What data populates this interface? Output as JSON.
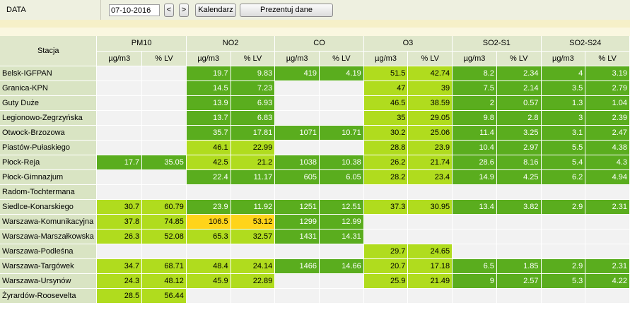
{
  "toolbar": {
    "label": "DATA",
    "date": "07-10-2016",
    "prev": "<",
    "next": ">",
    "calendar": "Kalendarz",
    "present": "Prezentuj dane"
  },
  "header": {
    "station": "Stacja",
    "pollutants": [
      "PM10",
      "NO2",
      "CO",
      "O3",
      "SO2-S1",
      "SO2-S24"
    ],
    "units": [
      "µg/m3",
      "% LV"
    ]
  },
  "colors": {
    "dark_green": "#5aad1e",
    "light_green": "#b0dc1e",
    "yellow": "#ffd41a",
    "empty": "#f2f2f2"
  },
  "rows": [
    {
      "station": "Belsk-IGFPAN",
      "cells": [
        {
          "v": "",
          "c": "e"
        },
        {
          "v": "",
          "c": "e"
        },
        {
          "v": "19.7",
          "c": "dg"
        },
        {
          "v": "9.83",
          "c": "dg"
        },
        {
          "v": "419",
          "c": "dg"
        },
        {
          "v": "4.19",
          "c": "dg"
        },
        {
          "v": "51.5",
          "c": "lg"
        },
        {
          "v": "42.74",
          "c": "lg"
        },
        {
          "v": "8.2",
          "c": "dg"
        },
        {
          "v": "2.34",
          "c": "dg"
        },
        {
          "v": "4",
          "c": "dg"
        },
        {
          "v": "3.19",
          "c": "dg"
        }
      ]
    },
    {
      "station": "Granica-KPN",
      "cells": [
        {
          "v": "",
          "c": "e"
        },
        {
          "v": "",
          "c": "e"
        },
        {
          "v": "14.5",
          "c": "dg"
        },
        {
          "v": "7.23",
          "c": "dg"
        },
        {
          "v": "",
          "c": "e"
        },
        {
          "v": "",
          "c": "e"
        },
        {
          "v": "47",
          "c": "lg"
        },
        {
          "v": "39",
          "c": "lg"
        },
        {
          "v": "7.5",
          "c": "dg"
        },
        {
          "v": "2.14",
          "c": "dg"
        },
        {
          "v": "3.5",
          "c": "dg"
        },
        {
          "v": "2.79",
          "c": "dg"
        }
      ]
    },
    {
      "station": "Guty Duże",
      "cells": [
        {
          "v": "",
          "c": "e"
        },
        {
          "v": "",
          "c": "e"
        },
        {
          "v": "13.9",
          "c": "dg"
        },
        {
          "v": "6.93",
          "c": "dg"
        },
        {
          "v": "",
          "c": "e"
        },
        {
          "v": "",
          "c": "e"
        },
        {
          "v": "46.5",
          "c": "lg"
        },
        {
          "v": "38.59",
          "c": "lg"
        },
        {
          "v": "2",
          "c": "dg"
        },
        {
          "v": "0.57",
          "c": "dg"
        },
        {
          "v": "1.3",
          "c": "dg"
        },
        {
          "v": "1.04",
          "c": "dg"
        }
      ]
    },
    {
      "station": "Legionowo-Zegrzyńska",
      "cells": [
        {
          "v": "",
          "c": "e"
        },
        {
          "v": "",
          "c": "e"
        },
        {
          "v": "13.7",
          "c": "dg"
        },
        {
          "v": "6.83",
          "c": "dg"
        },
        {
          "v": "",
          "c": "e"
        },
        {
          "v": "",
          "c": "e"
        },
        {
          "v": "35",
          "c": "lg"
        },
        {
          "v": "29.05",
          "c": "lg"
        },
        {
          "v": "9.8",
          "c": "dg"
        },
        {
          "v": "2.8",
          "c": "dg"
        },
        {
          "v": "3",
          "c": "dg"
        },
        {
          "v": "2.39",
          "c": "dg"
        }
      ]
    },
    {
      "station": "Otwock-Brzozowa",
      "cells": [
        {
          "v": "",
          "c": "e"
        },
        {
          "v": "",
          "c": "e"
        },
        {
          "v": "35.7",
          "c": "dg"
        },
        {
          "v": "17.81",
          "c": "dg"
        },
        {
          "v": "1071",
          "c": "dg"
        },
        {
          "v": "10.71",
          "c": "dg"
        },
        {
          "v": "30.2",
          "c": "lg"
        },
        {
          "v": "25.06",
          "c": "lg"
        },
        {
          "v": "11.4",
          "c": "dg"
        },
        {
          "v": "3.25",
          "c": "dg"
        },
        {
          "v": "3.1",
          "c": "dg"
        },
        {
          "v": "2.47",
          "c": "dg"
        }
      ]
    },
    {
      "station": "Piastów-Pułaskiego",
      "cells": [
        {
          "v": "",
          "c": "e"
        },
        {
          "v": "",
          "c": "e"
        },
        {
          "v": "46.1",
          "c": "lg"
        },
        {
          "v": "22.99",
          "c": "lg"
        },
        {
          "v": "",
          "c": "e"
        },
        {
          "v": "",
          "c": "e"
        },
        {
          "v": "28.8",
          "c": "lg"
        },
        {
          "v": "23.9",
          "c": "lg"
        },
        {
          "v": "10.4",
          "c": "dg"
        },
        {
          "v": "2.97",
          "c": "dg"
        },
        {
          "v": "5.5",
          "c": "dg"
        },
        {
          "v": "4.38",
          "c": "dg"
        }
      ]
    },
    {
      "station": "Płock-Reja",
      "cells": [
        {
          "v": "17.7",
          "c": "dg"
        },
        {
          "v": "35.05",
          "c": "dg"
        },
        {
          "v": "42.5",
          "c": "lg"
        },
        {
          "v": "21.2",
          "c": "lg"
        },
        {
          "v": "1038",
          "c": "dg"
        },
        {
          "v": "10.38",
          "c": "dg"
        },
        {
          "v": "26.2",
          "c": "lg"
        },
        {
          "v": "21.74",
          "c": "lg"
        },
        {
          "v": "28.6",
          "c": "dg"
        },
        {
          "v": "8.16",
          "c": "dg"
        },
        {
          "v": "5.4",
          "c": "dg"
        },
        {
          "v": "4.3",
          "c": "dg"
        }
      ]
    },
    {
      "station": "Płock-Gimnazjum",
      "cells": [
        {
          "v": "",
          "c": "e"
        },
        {
          "v": "",
          "c": "e"
        },
        {
          "v": "22.4",
          "c": "dg"
        },
        {
          "v": "11.17",
          "c": "dg"
        },
        {
          "v": "605",
          "c": "dg"
        },
        {
          "v": "6.05",
          "c": "dg"
        },
        {
          "v": "28.2",
          "c": "lg"
        },
        {
          "v": "23.4",
          "c": "lg"
        },
        {
          "v": "14.9",
          "c": "dg"
        },
        {
          "v": "4.25",
          "c": "dg"
        },
        {
          "v": "6.2",
          "c": "dg"
        },
        {
          "v": "4.94",
          "c": "dg"
        }
      ]
    },
    {
      "station": "Radom-Tochtermana",
      "cells": [
        {
          "v": "",
          "c": "e"
        },
        {
          "v": "",
          "c": "e"
        },
        {
          "v": "",
          "c": "e"
        },
        {
          "v": "",
          "c": "e"
        },
        {
          "v": "",
          "c": "e"
        },
        {
          "v": "",
          "c": "e"
        },
        {
          "v": "",
          "c": "e"
        },
        {
          "v": "",
          "c": "e"
        },
        {
          "v": "",
          "c": "e"
        },
        {
          "v": "",
          "c": "e"
        },
        {
          "v": "",
          "c": "e"
        },
        {
          "v": "",
          "c": "e"
        }
      ]
    },
    {
      "station": "Siedlce-Konarskiego",
      "cells": [
        {
          "v": "30.7",
          "c": "lg"
        },
        {
          "v": "60.79",
          "c": "lg"
        },
        {
          "v": "23.9",
          "c": "dg"
        },
        {
          "v": "11.92",
          "c": "dg"
        },
        {
          "v": "1251",
          "c": "dg"
        },
        {
          "v": "12.51",
          "c": "dg"
        },
        {
          "v": "37.3",
          "c": "lg"
        },
        {
          "v": "30.95",
          "c": "lg"
        },
        {
          "v": "13.4",
          "c": "dg"
        },
        {
          "v": "3.82",
          "c": "dg"
        },
        {
          "v": "2.9",
          "c": "dg"
        },
        {
          "v": "2.31",
          "c": "dg"
        }
      ]
    },
    {
      "station": "Warszawa-Komunikacyjna",
      "cells": [
        {
          "v": "37.8",
          "c": "lg"
        },
        {
          "v": "74.85",
          "c": "lg"
        },
        {
          "v": "106.5",
          "c": "y"
        },
        {
          "v": "53.12",
          "c": "y"
        },
        {
          "v": "1299",
          "c": "dg"
        },
        {
          "v": "12.99",
          "c": "dg"
        },
        {
          "v": "",
          "c": "e"
        },
        {
          "v": "",
          "c": "e"
        },
        {
          "v": "",
          "c": "e"
        },
        {
          "v": "",
          "c": "e"
        },
        {
          "v": "",
          "c": "e"
        },
        {
          "v": "",
          "c": "e"
        }
      ]
    },
    {
      "station": "Warszawa-Marszałkowska",
      "cells": [
        {
          "v": "26.3",
          "c": "lg"
        },
        {
          "v": "52.08",
          "c": "lg"
        },
        {
          "v": "65.3",
          "c": "lg"
        },
        {
          "v": "32.57",
          "c": "lg"
        },
        {
          "v": "1431",
          "c": "dg"
        },
        {
          "v": "14.31",
          "c": "dg"
        },
        {
          "v": "",
          "c": "e"
        },
        {
          "v": "",
          "c": "e"
        },
        {
          "v": "",
          "c": "e"
        },
        {
          "v": "",
          "c": "e"
        },
        {
          "v": "",
          "c": "e"
        },
        {
          "v": "",
          "c": "e"
        }
      ]
    },
    {
      "station": "Warszawa-Podleśna",
      "cells": [
        {
          "v": "",
          "c": "e"
        },
        {
          "v": "",
          "c": "e"
        },
        {
          "v": "",
          "c": "e"
        },
        {
          "v": "",
          "c": "e"
        },
        {
          "v": "",
          "c": "e"
        },
        {
          "v": "",
          "c": "e"
        },
        {
          "v": "29.7",
          "c": "lg"
        },
        {
          "v": "24.65",
          "c": "lg"
        },
        {
          "v": "",
          "c": "e"
        },
        {
          "v": "",
          "c": "e"
        },
        {
          "v": "",
          "c": "e"
        },
        {
          "v": "",
          "c": "e"
        }
      ]
    },
    {
      "station": "Warszawa-Targówek",
      "cells": [
        {
          "v": "34.7",
          "c": "lg"
        },
        {
          "v": "68.71",
          "c": "lg"
        },
        {
          "v": "48.4",
          "c": "lg"
        },
        {
          "v": "24.14",
          "c": "lg"
        },
        {
          "v": "1466",
          "c": "dg"
        },
        {
          "v": "14.66",
          "c": "dg"
        },
        {
          "v": "20.7",
          "c": "lg"
        },
        {
          "v": "17.18",
          "c": "lg"
        },
        {
          "v": "6.5",
          "c": "dg"
        },
        {
          "v": "1.85",
          "c": "dg"
        },
        {
          "v": "2.9",
          "c": "dg"
        },
        {
          "v": "2.31",
          "c": "dg"
        }
      ]
    },
    {
      "station": "Warszawa-Ursynów",
      "cells": [
        {
          "v": "24.3",
          "c": "lg"
        },
        {
          "v": "48.12",
          "c": "lg"
        },
        {
          "v": "45.9",
          "c": "lg"
        },
        {
          "v": "22.89",
          "c": "lg"
        },
        {
          "v": "",
          "c": "e"
        },
        {
          "v": "",
          "c": "e"
        },
        {
          "v": "25.9",
          "c": "lg"
        },
        {
          "v": "21.49",
          "c": "lg"
        },
        {
          "v": "9",
          "c": "dg"
        },
        {
          "v": "2.57",
          "c": "dg"
        },
        {
          "v": "5.3",
          "c": "dg"
        },
        {
          "v": "4.22",
          "c": "dg"
        }
      ]
    },
    {
      "station": "Żyrardów-Roosevelta",
      "cells": [
        {
          "v": "28.5",
          "c": "lg"
        },
        {
          "v": "56.44",
          "c": "lg"
        },
        {
          "v": "",
          "c": "e"
        },
        {
          "v": "",
          "c": "e"
        },
        {
          "v": "",
          "c": "e"
        },
        {
          "v": "",
          "c": "e"
        },
        {
          "v": "",
          "c": "e"
        },
        {
          "v": "",
          "c": "e"
        },
        {
          "v": "",
          "c": "e"
        },
        {
          "v": "",
          "c": "e"
        },
        {
          "v": "",
          "c": "e"
        },
        {
          "v": "",
          "c": "e"
        }
      ]
    }
  ]
}
